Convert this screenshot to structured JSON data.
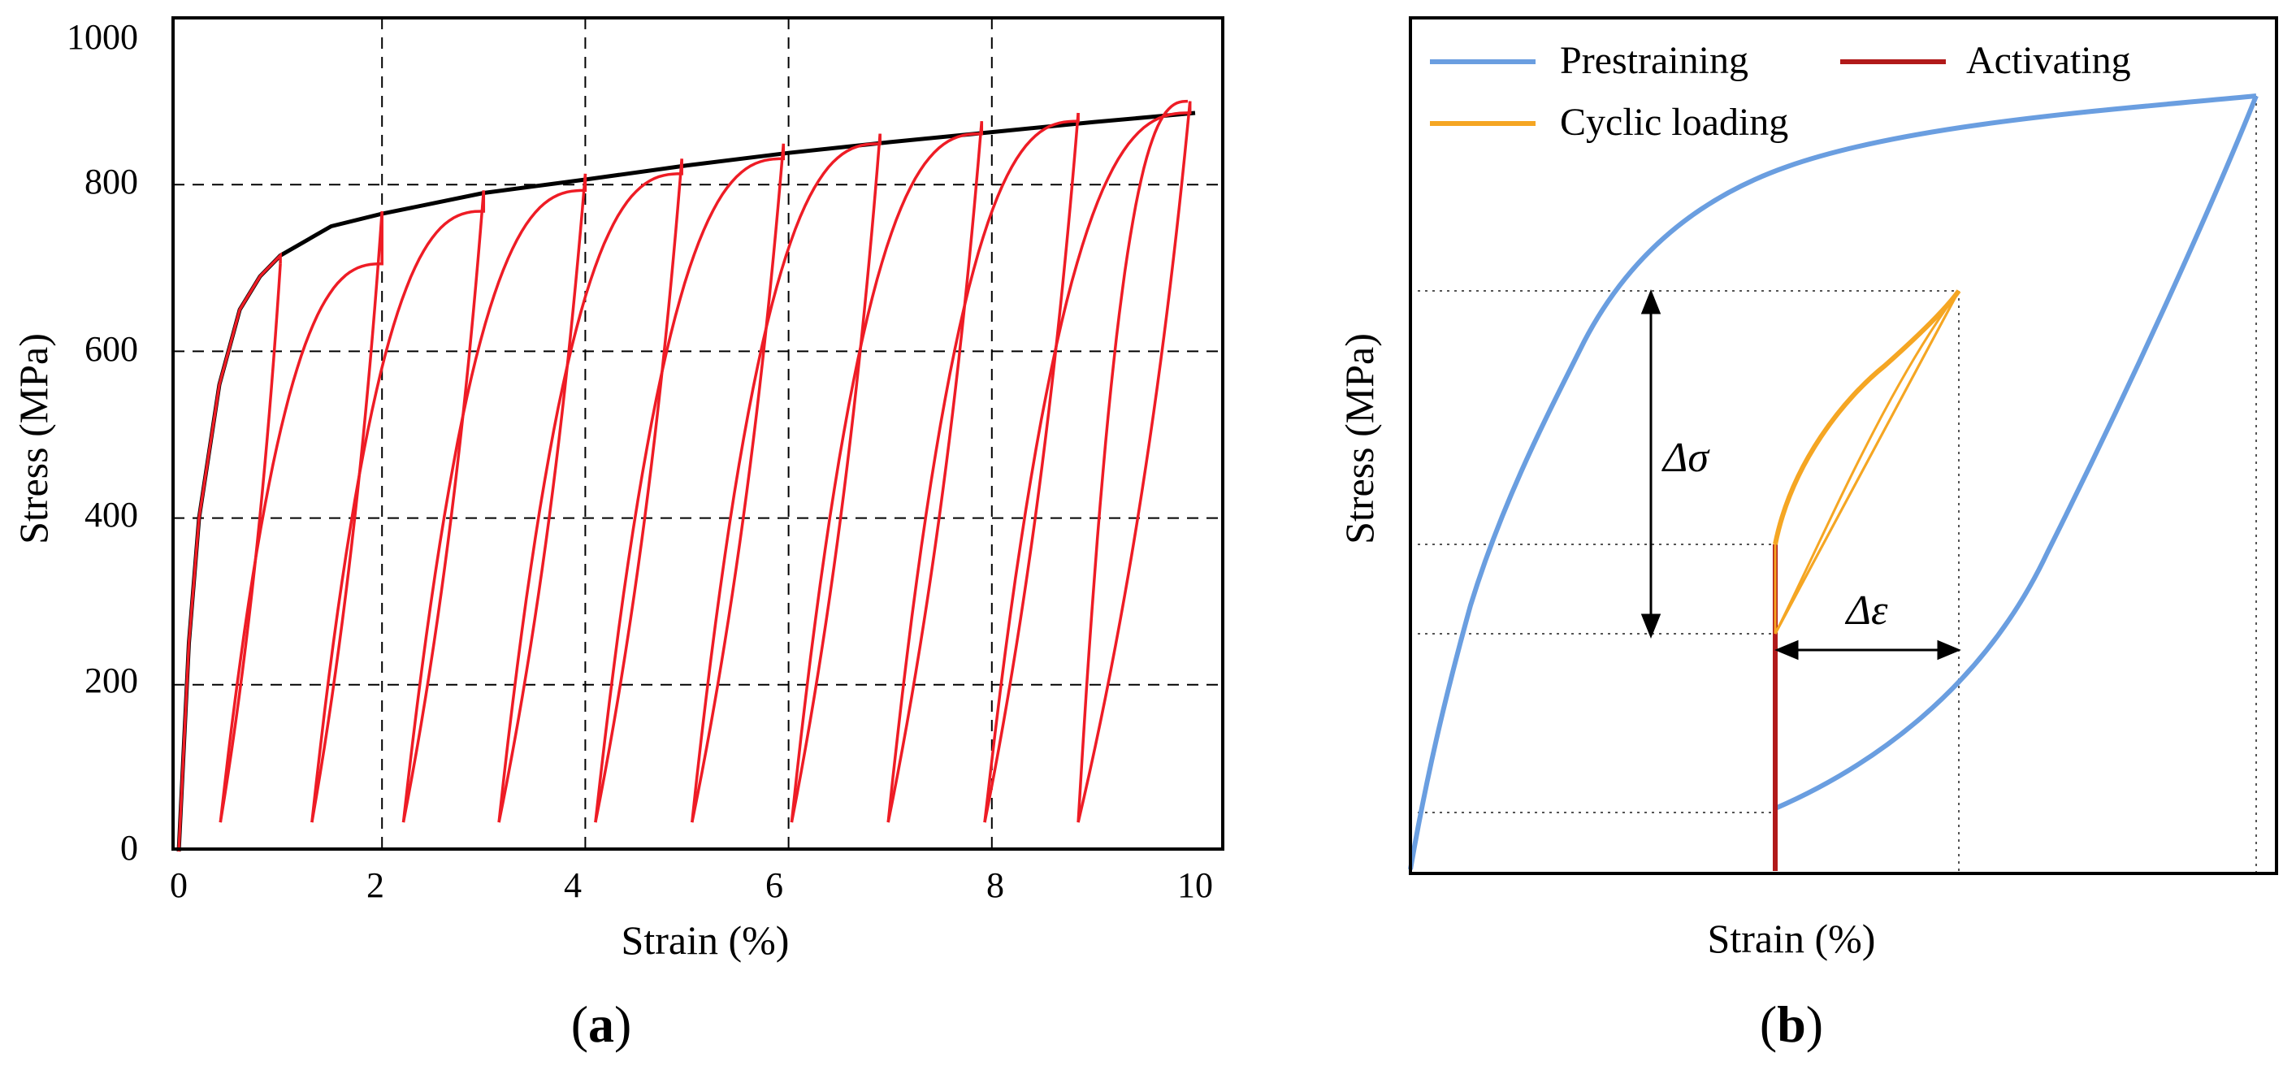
{
  "chart_data": [
    {
      "type": "line",
      "panel_label": "(a)",
      "panel_letter": "a",
      "xlabel": "Strain (%)",
      "ylabel": "Stress (MPa)",
      "xlim": [
        0,
        10
      ],
      "ylim": [
        0,
        1000
      ],
      "x_ticks": [
        "0",
        "2",
        "4",
        "6",
        "8",
        "10"
      ],
      "y_ticks": [
        "0",
        "200",
        "400",
        "600",
        "800",
        "1000"
      ],
      "grid": "dashed",
      "colors": {
        "monotonic": "#000000",
        "cyclic": "#ee1c25"
      },
      "series": [
        {
          "name": "monotonic",
          "points": [
            [
              0,
              0
            ],
            [
              0.1,
              250
            ],
            [
              0.2,
              400
            ],
            [
              0.4,
              560
            ],
            [
              0.6,
              650
            ],
            [
              0.8,
              690
            ],
            [
              1.0,
              715
            ],
            [
              1.5,
              750
            ],
            [
              2.0,
              765
            ],
            [
              3,
              790
            ],
            [
              4,
              806
            ],
            [
              5,
              823
            ],
            [
              6,
              838
            ],
            [
              7,
              851
            ],
            [
              8,
              863
            ],
            [
              9,
              875
            ],
            [
              10,
              886
            ]
          ]
        },
        {
          "name": "cyclic_loops",
          "loops": [
            {
              "peak_strain": 1.0,
              "peak_stress": 705,
              "unload_strain": 0.41
            },
            {
              "peak_strain": 2.0,
              "peak_stress": 768,
              "unload_strain": 1.31
            },
            {
              "peak_strain": 3.0,
              "peak_stress": 793,
              "unload_strain": 2.21
            },
            {
              "peak_strain": 4.0,
              "peak_stress": 813,
              "unload_strain": 3.15
            },
            {
              "peak_strain": 4.95,
              "peak_stress": 831,
              "unload_strain": 4.1
            },
            {
              "peak_strain": 5.95,
              "peak_stress": 849,
              "unload_strain": 5.05
            },
            {
              "peak_strain": 6.9,
              "peak_stress": 861,
              "unload_strain": 6.03
            },
            {
              "peak_strain": 7.9,
              "peak_stress": 876,
              "unload_strain": 6.98
            },
            {
              "peak_strain": 8.85,
              "peak_stress": 886,
              "unload_strain": 7.93
            },
            {
              "peak_strain": 9.95,
              "peak_stress": 900,
              "unload_strain": 8.85
            }
          ],
          "min_stress": 35
        }
      ]
    },
    {
      "type": "line",
      "panel_label": "(b)",
      "panel_letter": "b",
      "xlabel": "Strain (%)",
      "ylabel": "Stress (MPa)",
      "schematic": true,
      "legend": [
        {
          "label": "Prestraining",
          "color": "#6a9ee0"
        },
        {
          "label": "Activating",
          "color": "#b11a1a"
        },
        {
          "label": "Cyclic loading",
          "color": "#f5a623"
        }
      ],
      "annotations": {
        "delta_stress": "Δσ",
        "delta_strain": "Δε"
      }
    }
  ]
}
